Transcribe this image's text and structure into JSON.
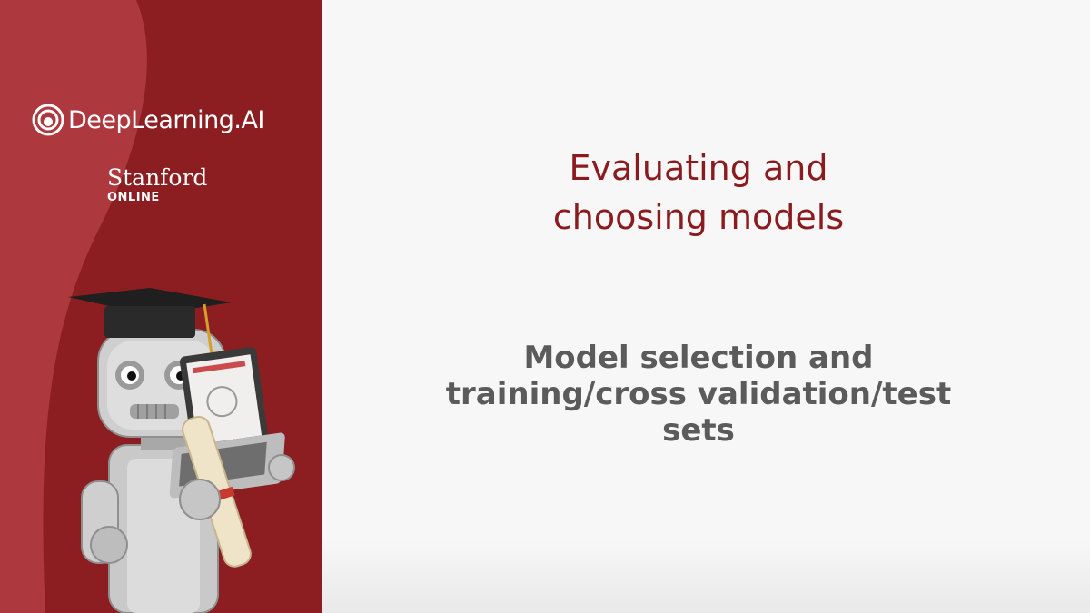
{
  "sidebar": {
    "brand": {
      "name": "DeepLearning.AI",
      "logo_icon": "deeplearning-ai-logo-icon"
    },
    "institution": {
      "name": "Stanford",
      "sub": "ONLINE"
    },
    "mascot_icon": "graduate-robot-illustration"
  },
  "slide": {
    "title_lines": [
      "Evaluating and",
      "choosing models"
    ],
    "subtitle_lines": [
      "Model selection and",
      "training/cross validation/test",
      "sets"
    ]
  },
  "colors": {
    "sidebar_bg": "#8c1e21",
    "title": "#8a1c1f",
    "subtitle": "#5b5b5b",
    "slide_bg": "#f7f7f7"
  }
}
